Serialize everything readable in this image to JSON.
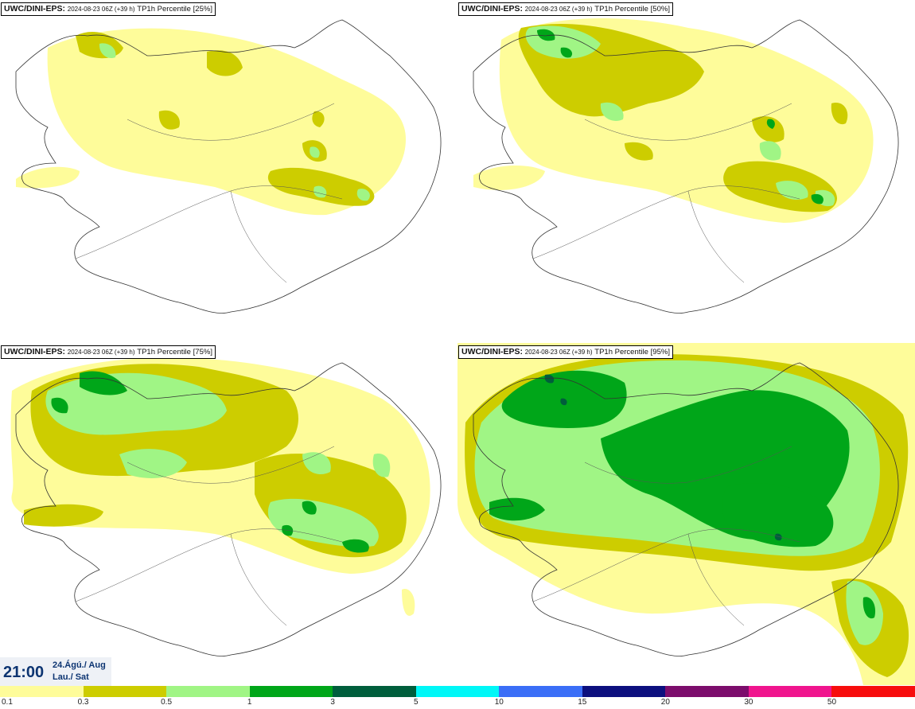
{
  "panels": [
    {
      "model": "UWC/DINI-EPS",
      "sep": ":",
      "run": "2024-08-23 06Z (+39 h)",
      "param": "TP1h Percentile",
      "pct": "[25%]"
    },
    {
      "model": "UWC/DINI-EPS",
      "sep": ":",
      "run": "2024-08-23 06Z (+39 h)",
      "param": "TP1h Percentile",
      "pct": "[50%]"
    },
    {
      "model": "UWC/DINI-EPS",
      "sep": ":",
      "run": "2024-08-23 06Z (+39 h)",
      "param": "TP1h Percentile",
      "pct": "[75%]"
    },
    {
      "model": "UWC/DINI-EPS",
      "sep": ":",
      "run": "2024-08-23 06Z (+39 h)",
      "param": "TP1h Percentile",
      "pct": "[95%]"
    }
  ],
  "valid_time": {
    "time": "21:00",
    "date_line1": "24.Ágú./ Aug",
    "date_line2": "Lau./ Sat"
  },
  "legend": {
    "labels": [
      "0.1",
      "0.3",
      "0.5",
      "1",
      "3",
      "5",
      "10",
      "15",
      "20",
      "30",
      "50"
    ],
    "colors": [
      "#fefc9a",
      "#cdcd00",
      "#a0f585",
      "#00a619",
      "#005e3c",
      "#00f7f7",
      "#3a6ef7",
      "#0c0f7e",
      "#7c0d6c",
      "#f0158e",
      "#f70d0d"
    ]
  }
}
